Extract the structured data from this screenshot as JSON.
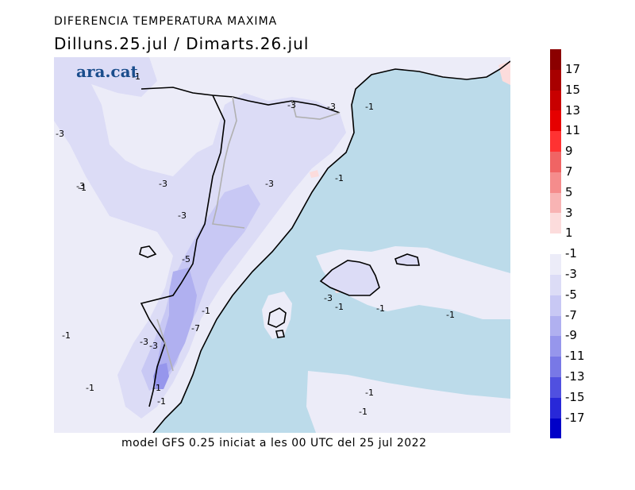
{
  "header": {
    "title": "DIFERENCIA TEMPERATURA MAXIMA",
    "subtitle": "Dilluns.25.jul / Dimarts.26.jul"
  },
  "brand": "ara.cat",
  "footer": "model GFS 0.25 iniciat a les 00 UTC del 25 jul 2022",
  "legend": {
    "positive": [
      {
        "label": "17",
        "color": "#8b0000"
      },
      {
        "label": "15",
        "color": "#a80000"
      },
      {
        "label": "13",
        "color": "#c80000"
      },
      {
        "label": "11",
        "color": "#e60000"
      },
      {
        "label": "9",
        "color": "#ff3232"
      },
      {
        "label": "7",
        "color": "#f06464"
      },
      {
        "label": "5",
        "color": "#f58c8c"
      },
      {
        "label": "3",
        "color": "#f8b4b4"
      },
      {
        "label": "1",
        "color": "#fcdcdc"
      }
    ],
    "negative": [
      {
        "label": "-1",
        "color": "#ececf8"
      },
      {
        "label": "-3",
        "color": "#dcdcf6"
      },
      {
        "label": "-5",
        "color": "#c8c8f4"
      },
      {
        "label": "-7",
        "color": "#b0b0f0"
      },
      {
        "label": "-9",
        "color": "#9696ec"
      },
      {
        "label": "-11",
        "color": "#7878e6"
      },
      {
        "label": "-13",
        "color": "#5050e0"
      },
      {
        "label": "-15",
        "color": "#2828d8"
      },
      {
        "label": "-17",
        "color": "#0000c8"
      }
    ]
  },
  "colors": {
    "sea": "#bcdbea",
    "land_minus1": "#ececf8",
    "land_minus3": "#dcdcf6",
    "land_minus5": "#c8c8f4",
    "land_minus7": "#b0b0f0",
    "land_minus9": "#9696ec",
    "warm": "#fcdcdc",
    "coast": "#000000",
    "border": "#b0b0b0"
  },
  "contour_labels": [
    {
      "text": "-1"
    },
    {
      "text": "-3"
    },
    {
      "text": "-3"
    },
    {
      "text": "-3"
    },
    {
      "text": "-1"
    },
    {
      "text": "-3"
    },
    {
      "text": "-3"
    },
    {
      "text": "-1"
    },
    {
      "text": "-3"
    },
    {
      "text": "-5"
    },
    {
      "text": "-1"
    },
    {
      "text": "-7"
    },
    {
      "text": "-3"
    },
    {
      "text": "-1"
    },
    {
      "text": "-3"
    },
    {
      "text": "-1"
    },
    {
      "text": "-1"
    },
    {
      "text": "-3"
    },
    {
      "text": "-1"
    },
    {
      "text": "-1"
    },
    {
      "text": "-1"
    },
    {
      "text": "-1"
    },
    {
      "text": "-1"
    },
    {
      "text": "-1"
    },
    {
      "text": "-3"
    },
    {
      "text": "-1"
    }
  ]
}
